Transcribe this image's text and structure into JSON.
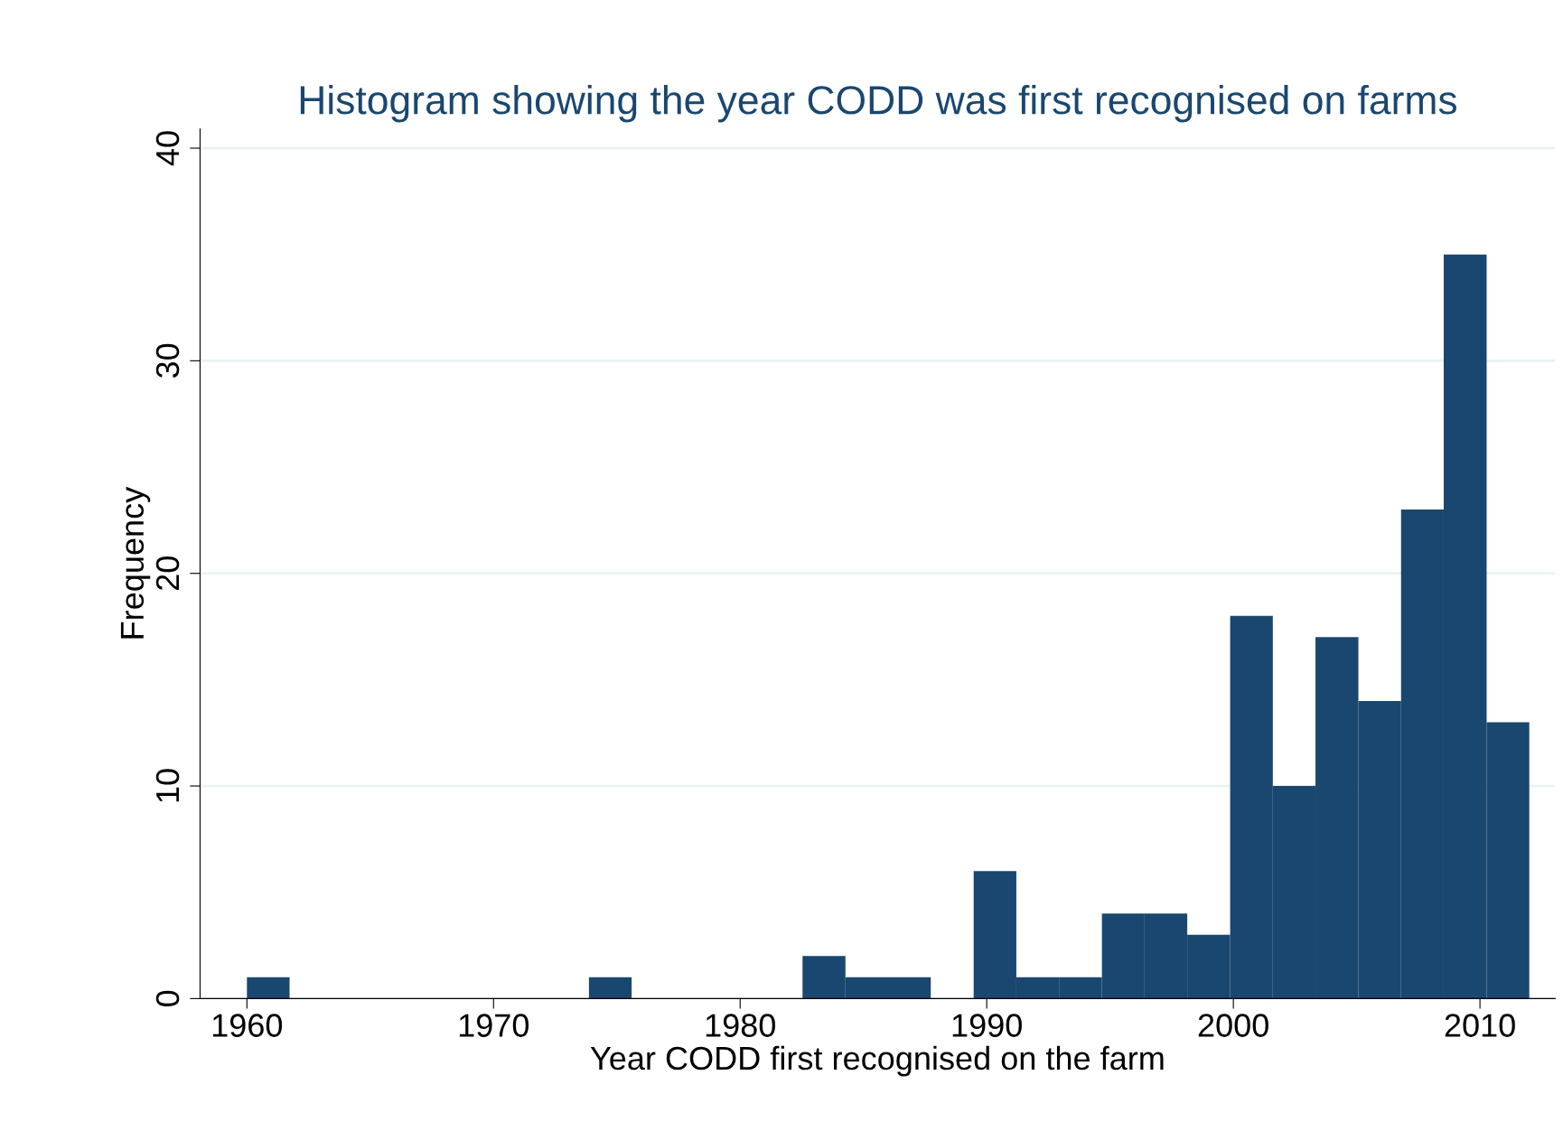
{
  "chart_data": {
    "type": "histogram",
    "title": "Histogram showing the year CODD was first recognised on farms",
    "xlabel": "Year CODD first recognised on the farm",
    "ylabel": "Frequency",
    "bins": [
      1960,
      1961.73,
      1963.47,
      1965.2,
      1966.93,
      1968.67,
      1970.4,
      1972.13,
      1973.87,
      1975.6,
      1977.33,
      1979.07,
      1980.8,
      1982.53,
      1984.27,
      1986,
      1987.73,
      1989.47,
      1991.2,
      1992.93,
      1994.67,
      1996.4,
      1998.13,
      1999.87,
      2001.6,
      2003.33,
      2005.07,
      2006.8,
      2008.53,
      2010.27,
      2012
    ],
    "values": [
      1,
      0,
      0,
      0,
      0,
      0,
      0,
      0,
      1,
      0,
      0,
      0,
      0,
      2,
      1,
      1,
      0,
      6,
      1,
      1,
      4,
      4,
      3,
      18,
      10,
      17,
      14,
      23,
      35,
      13
    ],
    "color": "#1a476f",
    "xlim": [
      1958.1,
      2013.05
    ],
    "xticks": [
      1960,
      1970,
      1980,
      1990,
      2000,
      2010
    ],
    "ylim": [
      0,
      40.9
    ],
    "yticks": [
      0,
      10,
      20,
      30,
      40
    ],
    "grid": "y"
  }
}
